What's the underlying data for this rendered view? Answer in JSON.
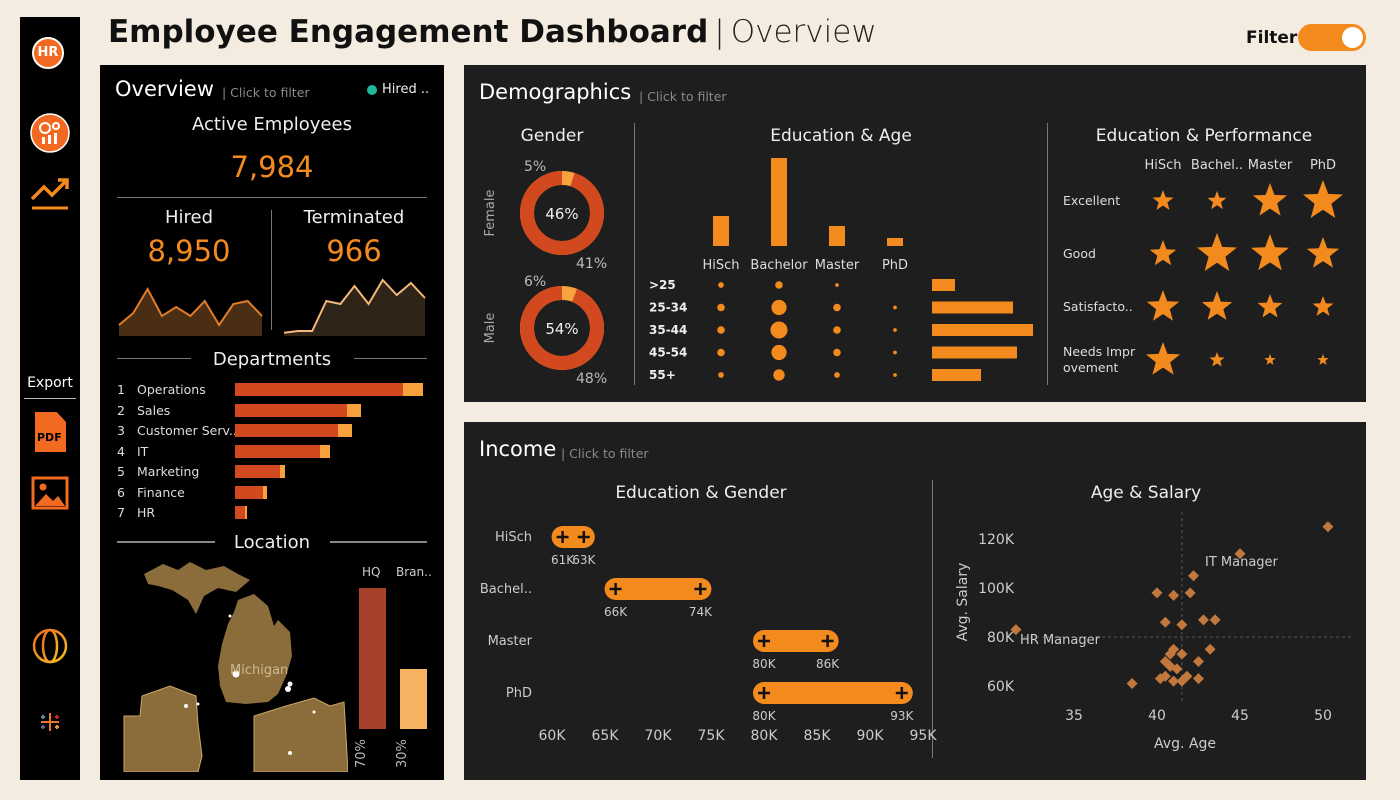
{
  "header": {
    "title": "Employee Engagement Dashboard",
    "subtitle": "Overview",
    "filter_label": "Filter",
    "filter_on": true
  },
  "sidebar": {
    "logo": "HR",
    "export_label": "Export",
    "pdf_label": "PDF",
    "icons": [
      "hr-logo-icon",
      "analytics-icon",
      "trend-icon",
      "pdf-icon",
      "image-icon",
      "globe-icon",
      "tableau-icon"
    ]
  },
  "overview": {
    "title": "Overview",
    "hint": "| Click to filter",
    "legend": "Hired ..",
    "active_label": "Active Employees",
    "active_value": "7,984",
    "hired_label": "Hired",
    "hired_value": "8,950",
    "terminated_label": "Terminated",
    "terminated_value": "966",
    "hired_trend": [
      0.15,
      0.35,
      0.75,
      0.3,
      0.45,
      0.3,
      0.55,
      0.15,
      0.5,
      0.55,
      0.3
    ],
    "terminated_trend": [
      0.02,
      0.05,
      0.05,
      0.55,
      0.5,
      0.8,
      0.5,
      0.9,
      0.65,
      0.85,
      0.6
    ]
  },
  "departments": {
    "title": "Departments",
    "items": [
      {
        "rank": "1",
        "name": "Operations",
        "main": 168,
        "extra": 20
      },
      {
        "rank": "2",
        "name": "Sales",
        "main": 112,
        "extra": 14
      },
      {
        "rank": "3",
        "name": "Customer Serv..",
        "main": 103,
        "extra": 14
      },
      {
        "rank": "4",
        "name": "IT",
        "main": 85,
        "extra": 10
      },
      {
        "rank": "5",
        "name": "Marketing",
        "main": 45,
        "extra": 5
      },
      {
        "rank": "6",
        "name": "Finance",
        "main": 28,
        "extra": 4
      },
      {
        "rank": "7",
        "name": "HR",
        "main": 10,
        "extra": 2
      }
    ]
  },
  "location": {
    "title": "Location",
    "map_label": "Michigan",
    "col1": "HQ",
    "col2": "Bran..",
    "hq_share": 70,
    "branch_share": 30,
    "hq_pct": "70%",
    "branch_pct": "30%"
  },
  "demographics": {
    "title": "Demographics",
    "hint": "| Click to filter",
    "gender": {
      "title": "Gender",
      "female": {
        "label": "Female",
        "center": "46%",
        "share": 46,
        "top": "5%",
        "bottom": "41%"
      },
      "male": {
        "label": "Male",
        "center": "54%",
        "share": 54,
        "top": "6%",
        "bottom": "48%"
      }
    },
    "education_age": {
      "title": "Education & Age",
      "education": [
        "HiSch",
        "Bachelor",
        "Master",
        "PhD"
      ],
      "education_bars": [
        30,
        88,
        20,
        8
      ],
      "ages": [
        ">25",
        "25-34",
        "35-44",
        "45-54",
        "55+"
      ],
      "age_bars": [
        23,
        81,
        101,
        85,
        49
      ],
      "dots": [
        [
          3,
          4,
          2,
          0
        ],
        [
          4,
          8,
          4,
          2
        ],
        [
          4,
          9,
          4,
          2
        ],
        [
          4,
          8,
          4,
          2
        ],
        [
          3,
          6,
          3,
          2
        ]
      ]
    },
    "education_performance": {
      "title": "Education & Performance",
      "columns": [
        "HiSch",
        "Bachel..",
        "Master",
        "PhD"
      ],
      "rows": [
        "Excellent",
        "Good",
        "Satisfacto..",
        "Needs Impr ovement"
      ],
      "sizes": [
        [
          11,
          10,
          18,
          21
        ],
        [
          14,
          21,
          20,
          17
        ],
        [
          17,
          16,
          13,
          11
        ],
        [
          18,
          8,
          6,
          6
        ]
      ]
    }
  },
  "income": {
    "title": "Income",
    "hint": "| Click to filter",
    "edu_gender": {
      "title": "Education & Gender",
      "rows": [
        {
          "label": "HiSch",
          "low": 61,
          "high": 63,
          "low_label": "61K",
          "high_label": "63K"
        },
        {
          "label": "Bachel..",
          "low": 66,
          "high": 74,
          "low_label": "66K",
          "high_label": "74K"
        },
        {
          "label": "Master",
          "low": 80,
          "high": 86,
          "low_label": "80K",
          "high_label": "86K"
        },
        {
          "label": "PhD",
          "low": 80,
          "high": 93,
          "low_label": "80K",
          "high_label": "93K"
        }
      ],
      "axis": [
        "60K",
        "65K",
        "70K",
        "75K",
        "80K",
        "85K",
        "90K",
        "95K"
      ]
    },
    "age_salary": {
      "title": "Age & Salary",
      "xlabel": "Avg. Age",
      "ylabel": "Avg. Salary",
      "x_ticks": [
        "35",
        "40",
        "45",
        "50"
      ],
      "y_ticks": [
        "60K",
        "80K",
        "100K",
        "120K"
      ],
      "ann_it": "IT Manager",
      "ann_hr": "HR Manager",
      "points": [
        [
          50.3,
          125
        ],
        [
          45,
          114
        ],
        [
          31.5,
          83
        ],
        [
          42.2,
          105
        ],
        [
          41,
          97
        ],
        [
          40,
          98
        ],
        [
          42,
          98
        ],
        [
          40.5,
          86
        ],
        [
          41.5,
          85
        ],
        [
          43.5,
          87
        ],
        [
          42.8,
          87
        ],
        [
          43.2,
          75
        ],
        [
          41,
          75
        ],
        [
          40.8,
          73
        ],
        [
          41.5,
          73
        ],
        [
          40.5,
          70
        ],
        [
          42.5,
          70
        ],
        [
          40.8,
          68
        ],
        [
          41.2,
          67
        ],
        [
          40.5,
          64
        ],
        [
          41.8,
          64
        ],
        [
          41,
          62
        ],
        [
          41.5,
          62
        ],
        [
          40.2,
          63
        ],
        [
          42.5,
          63
        ],
        [
          38.5,
          61
        ]
      ]
    }
  }
}
